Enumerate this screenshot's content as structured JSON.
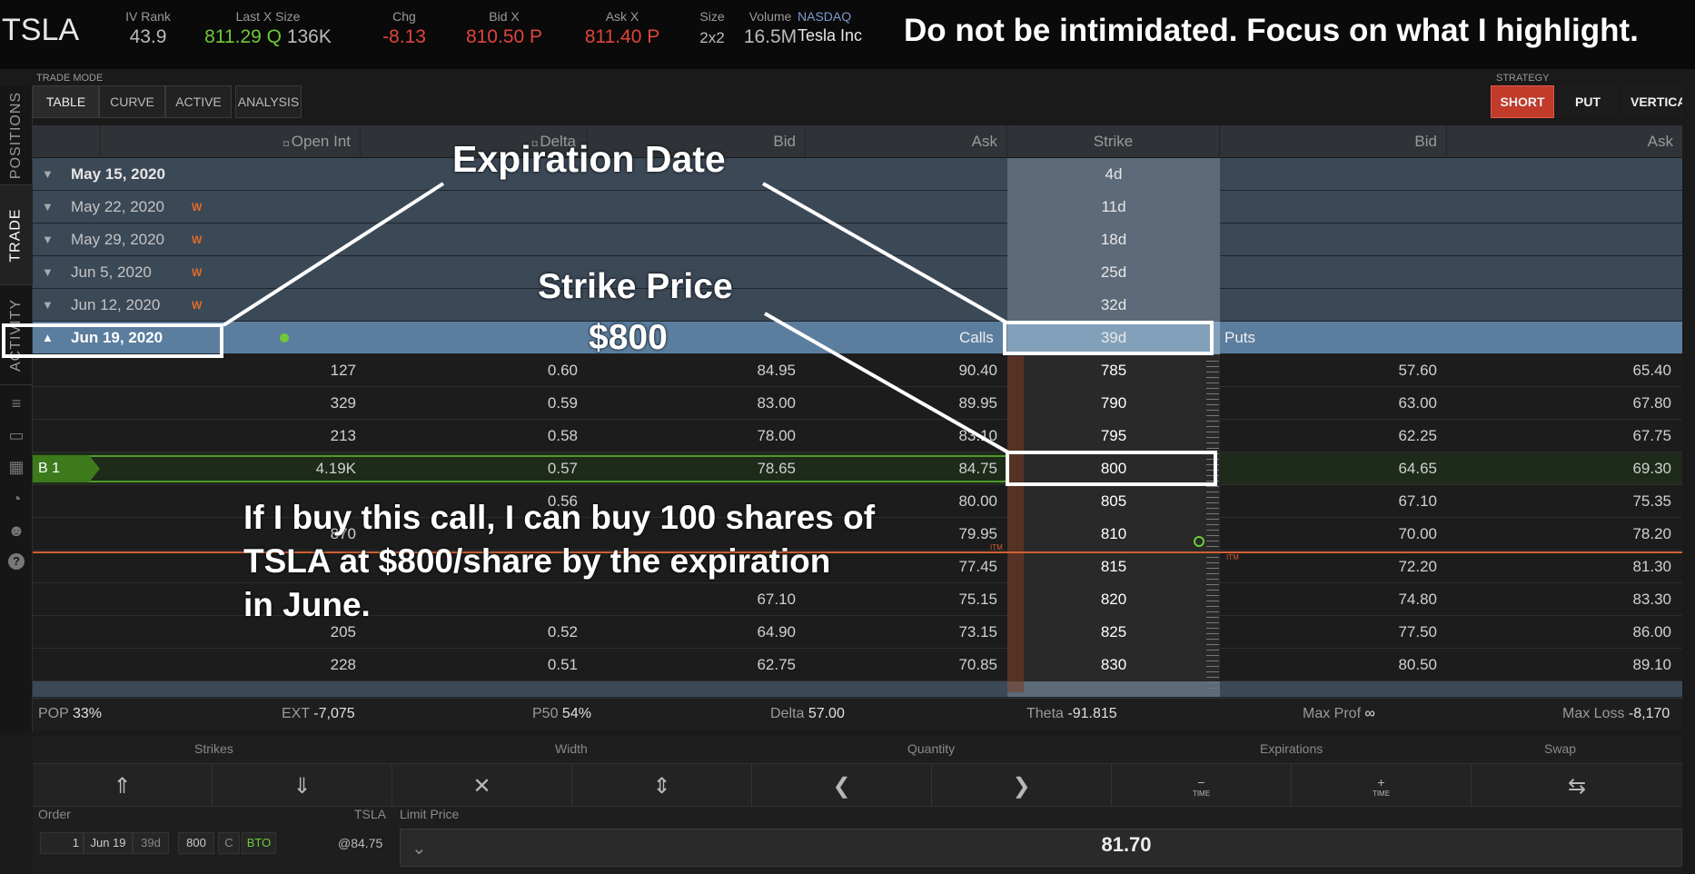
{
  "quote": {
    "symbol": "TSLA",
    "iv_rank_label": "IV Rank",
    "iv_rank": "43.9",
    "last_label": "Last X Size",
    "last": "811.29",
    "last_exch": "Q",
    "last_size": "136K",
    "chg_label": "Chg",
    "chg": "-8.13",
    "bid_label": "Bid X",
    "bid": "810.50 P",
    "ask_label": "Ask X",
    "ask": "811.40 P",
    "size_label": "Size",
    "size": "2x2",
    "volume_label": "Volume",
    "volume": "16.5M",
    "exchange": "NASDAQ",
    "company": "Tesla Inc"
  },
  "note": "Do not be intimidated. Focus on what I highlight.",
  "side_tabs": [
    "POSITIONS",
    "TRADE",
    "ACTIVITY"
  ],
  "trade_mode": {
    "label": "TRADE MODE",
    "tabs": [
      "TABLE",
      "CURVE",
      "ACTIVE",
      "ANALYSIS"
    ]
  },
  "strategy": {
    "label": "STRATEGY",
    "buttons": [
      "SHORT",
      "PUT",
      "VERTICA"
    ]
  },
  "columns": {
    "open_int": "Open Int",
    "delta": "Delta",
    "bid": "Bid",
    "ask": "Ask",
    "strike": "Strike",
    "put_bid": "Bid",
    "put_ask": "Ask"
  },
  "expirations": [
    {
      "date": "May 15, 2020",
      "w": "",
      "days": "4d"
    },
    {
      "date": "May 22, 2020",
      "w": "W",
      "days": "11d"
    },
    {
      "date": "May 29, 2020",
      "w": "W",
      "days": "18d"
    },
    {
      "date": "Jun 5, 2020",
      "w": "W",
      "days": "25d"
    },
    {
      "date": "Jun 12, 2020",
      "w": "W",
      "days": "32d"
    }
  ],
  "selected": {
    "date": "Jun 19, 2020",
    "days": "39d",
    "calls": "Calls",
    "puts": "Puts"
  },
  "options": [
    {
      "oi": "127",
      "delta": "0.60",
      "bid": "84.95",
      "ask": "90.40",
      "strike": "785",
      "pbid": "57.60",
      "pask": "65.40"
    },
    {
      "oi": "329",
      "delta": "0.59",
      "bid": "83.00",
      "ask": "89.95",
      "strike": "790",
      "pbid": "63.00",
      "pask": "67.80"
    },
    {
      "oi": "213",
      "delta": "0.58",
      "bid": "78.00",
      "ask": "83.10",
      "strike": "795",
      "pbid": "62.25",
      "pask": "67.75"
    },
    {
      "oi": "4.19K",
      "delta": "0.57",
      "bid": "78.65",
      "ask": "84.75",
      "strike": "800",
      "pbid": "64.65",
      "pask": "69.30"
    },
    {
      "oi": "",
      "delta": "0.56",
      "bid": "",
      "ask": "80.00",
      "strike": "805",
      "pbid": "67.10",
      "pask": "75.35"
    },
    {
      "oi": "870",
      "delta": "",
      "bid": "",
      "ask": "79.95",
      "strike": "810",
      "pbid": "70.00",
      "pask": "78.20"
    },
    {
      "oi": "",
      "delta": "",
      "bid": "",
      "ask": "77.45",
      "strike": "815",
      "pbid": "72.20",
      "pask": "81.30"
    },
    {
      "oi": "",
      "delta": "",
      "bid": "67.10",
      "ask": "75.15",
      "strike": "820",
      "pbid": "74.80",
      "pask": "83.30"
    },
    {
      "oi": "205",
      "delta": "0.52",
      "bid": "64.90",
      "ask": "73.15",
      "strike": "825",
      "pbid": "77.50",
      "pask": "86.00"
    },
    {
      "oi": "228",
      "delta": "0.51",
      "bid": "62.75",
      "ask": "70.85",
      "strike": "830",
      "pbid": "80.50",
      "pask": "89.10"
    }
  ],
  "order_marker": "B 1",
  "itm": "ITM",
  "summary": {
    "pop_l": "POP",
    "pop": "33%",
    "ext_l": "EXT",
    "ext": "-7,075",
    "p50_l": "P50",
    "p50": "54%",
    "delta_l": "Delta",
    "delta": "57.00",
    "theta_l": "Theta",
    "theta": "-91.815",
    "maxprof_l": "Max Prof",
    "maxprof": "∞",
    "maxloss_l": "Max Loss",
    "maxloss": "-8,170"
  },
  "controls": {
    "strikes": "Strikes",
    "width": "Width",
    "quantity": "Quantity",
    "expirations": "Expirations",
    "swap": "Swap",
    "time": "TIME"
  },
  "order": {
    "label": "Order",
    "sym": "TSLA",
    "limit_label": "Limit Price",
    "qty": "1",
    "exp": "Jun 19",
    "days": "39d",
    "strike": "800",
    "type": "C",
    "action": "BTO",
    "at_price": "@84.75",
    "limit": "81.70"
  },
  "annotations": {
    "expiration": "Expiration Date",
    "strike_title": "Strike Price",
    "strike_value": "$800",
    "explain": [
      "If I buy this call, I can buy 100 shares of",
      "TSLA at $800/share by the expiration",
      "in June."
    ]
  }
}
